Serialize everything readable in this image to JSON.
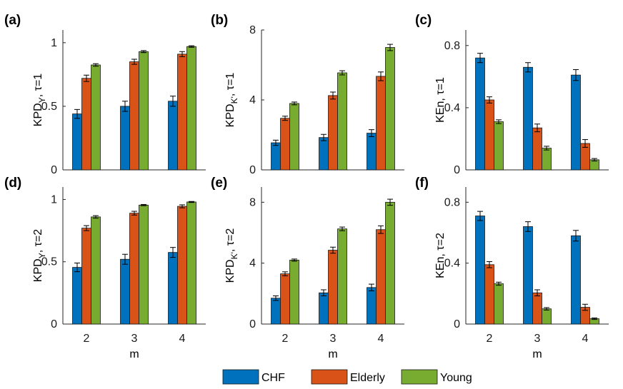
{
  "colors": {
    "CHF": "#0072BD",
    "Elderly": "#D95319",
    "Young": "#77AC30"
  },
  "legend": [
    "CHF",
    "Elderly",
    "Young"
  ],
  "chart_data": [
    {
      "panel": "(a)",
      "type": "bar",
      "categories": [
        "2",
        "3",
        "4"
      ],
      "ylabel": {
        "main": "KPD",
        "sub": "Y",
        "rest": ", τ=1"
      },
      "xlabel": "",
      "ylim": [
        0,
        1.1
      ],
      "yticks": [
        0,
        0.5,
        1
      ],
      "yticklabels": [
        "0",
        "0.5",
        "1"
      ],
      "show_xticklabels": false,
      "series": [
        {
          "name": "CHF",
          "values": [
            0.44,
            0.5,
            0.54
          ],
          "errors": [
            0.035,
            0.04,
            0.04
          ]
        },
        {
          "name": "Elderly",
          "values": [
            0.72,
            0.85,
            0.91
          ],
          "errors": [
            0.025,
            0.02,
            0.02
          ]
        },
        {
          "name": "Young",
          "values": [
            0.825,
            0.93,
            0.97
          ],
          "errors": [
            0.01,
            0.008,
            0.006
          ]
        }
      ]
    },
    {
      "panel": "(b)",
      "type": "bar",
      "categories": [
        "2",
        "3",
        "4"
      ],
      "ylabel": {
        "main": "KPD",
        "sub": "K'",
        "rest": ", τ=1"
      },
      "xlabel": "",
      "ylim": [
        0,
        8
      ],
      "yticks": [
        0,
        4,
        8
      ],
      "yticklabels": [
        "0",
        "4",
        "8"
      ],
      "show_xticklabels": false,
      "series": [
        {
          "name": "CHF",
          "values": [
            1.55,
            1.85,
            2.1
          ],
          "errors": [
            0.15,
            0.18,
            0.2
          ]
        },
        {
          "name": "Elderly",
          "values": [
            2.95,
            4.25,
            5.35
          ],
          "errors": [
            0.12,
            0.2,
            0.25
          ]
        },
        {
          "name": "Young",
          "values": [
            3.8,
            5.55,
            7.0
          ],
          "errors": [
            0.08,
            0.12,
            0.18
          ]
        }
      ]
    },
    {
      "panel": "(c)",
      "type": "bar",
      "categories": [
        "2",
        "3",
        "4"
      ],
      "ylabel": {
        "main": "KEn",
        "sub": "",
        "rest": ", τ=1"
      },
      "xlabel": "",
      "ylim": [
        0,
        0.9
      ],
      "yticks": [
        0,
        0.4,
        0.8
      ],
      "yticklabels": [
        "0",
        "0.4",
        "0.8"
      ],
      "show_xticklabels": false,
      "series": [
        {
          "name": "CHF",
          "values": [
            0.72,
            0.66,
            0.61
          ],
          "errors": [
            0.03,
            0.03,
            0.035
          ]
        },
        {
          "name": "Elderly",
          "values": [
            0.45,
            0.27,
            0.17
          ],
          "errors": [
            0.02,
            0.025,
            0.025
          ]
        },
        {
          "name": "Young",
          "values": [
            0.31,
            0.14,
            0.065
          ],
          "errors": [
            0.012,
            0.012,
            0.008
          ]
        }
      ]
    },
    {
      "panel": "(d)",
      "type": "bar",
      "categories": [
        "2",
        "3",
        "4"
      ],
      "ylabel": {
        "main": "KPD",
        "sub": "Y",
        "rest": ", τ=2"
      },
      "xlabel": "m",
      "ylim": [
        0,
        1.1
      ],
      "yticks": [
        0,
        0.5,
        1
      ],
      "yticklabels": [
        "0",
        "0.5",
        "1"
      ],
      "show_xticklabels": true,
      "series": [
        {
          "name": "CHF",
          "values": [
            0.455,
            0.52,
            0.575
          ],
          "errors": [
            0.035,
            0.04,
            0.04
          ]
        },
        {
          "name": "Elderly",
          "values": [
            0.77,
            0.89,
            0.945
          ],
          "errors": [
            0.02,
            0.015,
            0.012
          ]
        },
        {
          "name": "Young",
          "values": [
            0.86,
            0.955,
            0.98
          ],
          "errors": [
            0.01,
            0.005,
            0.004
          ]
        }
      ]
    },
    {
      "panel": "(e)",
      "type": "bar",
      "categories": [
        "2",
        "3",
        "4"
      ],
      "ylabel": {
        "main": "KPD",
        "sub": "K'",
        "rest": ", τ=2"
      },
      "xlabel": "m",
      "ylim": [
        0,
        9
      ],
      "yticks": [
        0,
        4,
        8
      ],
      "yticklabels": [
        "0",
        "4",
        "8"
      ],
      "show_xticklabels": true,
      "series": [
        {
          "name": "CHF",
          "values": [
            1.7,
            2.05,
            2.4
          ],
          "errors": [
            0.15,
            0.2,
            0.22
          ]
        },
        {
          "name": "Elderly",
          "values": [
            3.3,
            4.85,
            6.2
          ],
          "errors": [
            0.13,
            0.2,
            0.25
          ]
        },
        {
          "name": "Young",
          "values": [
            4.2,
            6.25,
            8.0
          ],
          "errors": [
            0.07,
            0.12,
            0.2
          ]
        }
      ]
    },
    {
      "panel": "(f)",
      "type": "bar",
      "categories": [
        "2",
        "3",
        "4"
      ],
      "ylabel": {
        "main": "KEn",
        "sub": "",
        "rest": ", τ=2"
      },
      "xlabel": "m",
      "ylim": [
        0,
        0.9
      ],
      "yticks": [
        0,
        0.4,
        0.8
      ],
      "yticklabels": [
        "0",
        "0.4",
        "0.8"
      ],
      "show_xticklabels": true,
      "series": [
        {
          "name": "CHF",
          "values": [
            0.71,
            0.64,
            0.58
          ],
          "errors": [
            0.03,
            0.032,
            0.035
          ]
        },
        {
          "name": "Elderly",
          "values": [
            0.39,
            0.205,
            0.11
          ],
          "errors": [
            0.02,
            0.02,
            0.02
          ]
        },
        {
          "name": "Young",
          "values": [
            0.265,
            0.1,
            0.035
          ],
          "errors": [
            0.01,
            0.008,
            0.005
          ]
        }
      ]
    }
  ]
}
